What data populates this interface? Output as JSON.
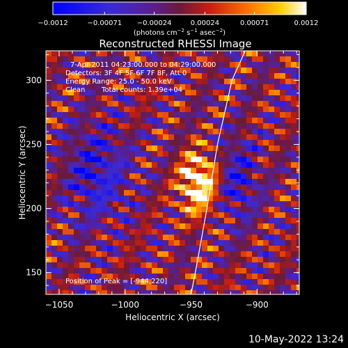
{
  "chart_data": {
    "type": "heatmap",
    "title": "Reconstructed RHESSI Image",
    "xlabel": "Heliocentric X (arcsec)",
    "ylabel": "Heliocentric Y (arcsec)",
    "xlim": [
      -1060,
      -868
    ],
    "ylim": [
      133,
      323
    ],
    "xticks": [
      -1050,
      -1000,
      -950,
      -900
    ],
    "yticks": [
      150,
      200,
      250,
      300
    ],
    "xtick_labels": [
      "−1050",
      "−1000",
      "−950",
      "−900"
    ],
    "ytick_labels": [
      "150",
      "200",
      "250",
      "300"
    ],
    "colorbar": {
      "range": [
        -0.0012,
        0.0012
      ],
      "ticks": [
        -0.0012,
        -0.00071,
        -0.00024,
        0.00024,
        0.00071,
        0.0012
      ],
      "tick_labels": [
        "−0.0012",
        "−0.00071",
        "−0.00024",
        "0.00024",
        "0.00071",
        "0.0012"
      ],
      "unit_main": "(photons cm",
      "unit_exp1": "−2",
      "unit_mid": " s",
      "unit_exp2": "−1",
      "unit_end": " asec",
      "unit_exp3": "−2",
      "unit_close": ")"
    },
    "annotations": {
      "time_range": "7-Apr-2011 04:23:00.000 to 04:29:00.000",
      "detectors": "Detectors: 3F 4F 5F 6F 7F 8F, Att 0",
      "energy": "Energy Range: 25.0 - 50.0 keV",
      "method": "Clean",
      "counts": "Total counts: 1.39e+04",
      "peak": "Position of Peak = [-944,220]"
    },
    "peak": {
      "x": -944,
      "y": 220
    },
    "limb_curve": [
      {
        "x": -950,
        "y": 133
      },
      {
        "x": -945,
        "y": 160
      },
      {
        "x": -938,
        "y": 200
      },
      {
        "x": -930,
        "y": 250
      },
      {
        "x": -919,
        "y": 300
      },
      {
        "x": -909,
        "y": 323
      }
    ],
    "colormap": "rhessi"
  },
  "footer": {
    "date": "10-May-2022 13:24"
  }
}
